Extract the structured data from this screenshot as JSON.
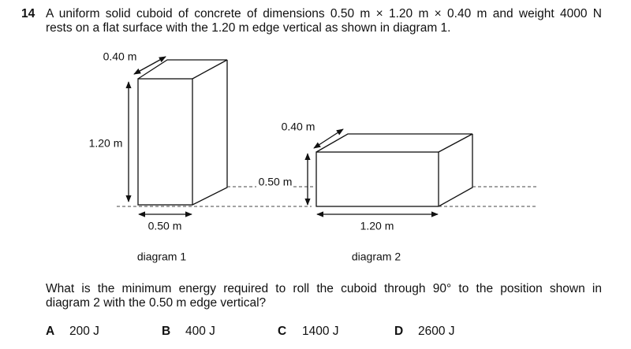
{
  "question": {
    "number": "14",
    "stem_lines": [
      "A uniform solid cuboid of concrete of dimensions 0.50 m × 1.20 m × 0.40 m and weight 4000 N",
      "rests on a flat surface with the 1.20 m edge vertical as shown in diagram 1."
    ],
    "diagram_1": {
      "depth": "0.40 m",
      "height": "1.20 m",
      "width": "0.50 m",
      "caption": "diagram 1"
    },
    "diagram_2": {
      "depth": "0.40 m",
      "height": "0.50 m",
      "width": "1.20 m",
      "caption": "diagram 2"
    },
    "prompt_lines": [
      "What is the minimum energy required to roll the cuboid through 90° to the position shown in",
      "diagram 2 with the 0.50 m edge vertical?"
    ],
    "options": [
      {
        "letter": "A",
        "text": "200 J"
      },
      {
        "letter": "B",
        "text": "400 J"
      },
      {
        "letter": "C",
        "text": "1400 J"
      },
      {
        "letter": "D",
        "text": "2600 J"
      }
    ]
  }
}
